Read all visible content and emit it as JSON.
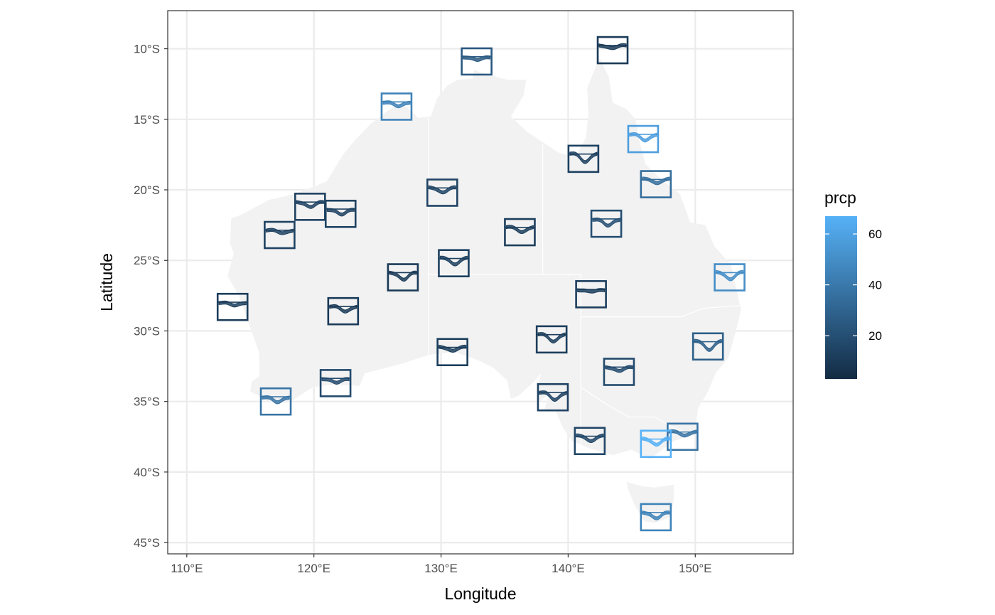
{
  "chart_data": {
    "type": "map-glyph",
    "xlabel": "Longitude",
    "ylabel": "Latitude",
    "xlim": [
      108.5,
      157.7
    ],
    "ylim": [
      -45.8,
      -7.3
    ],
    "x_ticks": [
      110,
      120,
      130,
      140,
      150
    ],
    "x_tick_labels": [
      "110°E",
      "120°E",
      "130°E",
      "140°E",
      "150°E"
    ],
    "y_ticks": [
      -10,
      -15,
      -20,
      -25,
      -30,
      -35,
      -40,
      -45
    ],
    "y_tick_labels": [
      "10°S",
      "15°S",
      "20°S",
      "25°S",
      "30°S",
      "35°S",
      "40°S",
      "45°S"
    ],
    "grid": true,
    "legend": {
      "title": "prcp",
      "position": "right",
      "min": 3,
      "max": 67,
      "ticks": [
        20,
        40,
        60
      ],
      "tick_labels": [
        "20",
        "40",
        "60"
      ],
      "color_low": "#132B43",
      "color_high": "#56B1F7"
    },
    "stations": [
      {
        "lon": 143.5,
        "lat": -10.1,
        "prcp": 10
      },
      {
        "lon": 132.8,
        "lat": -10.9,
        "prcp": 25
      },
      {
        "lon": 126.5,
        "lat": -14.1,
        "prcp": 45
      },
      {
        "lon": 145.9,
        "lat": -16.4,
        "prcp": 58
      },
      {
        "lon": 141.2,
        "lat": -17.8,
        "prcp": 13
      },
      {
        "lon": 146.9,
        "lat": -19.6,
        "prcp": 35
      },
      {
        "lon": 130.1,
        "lat": -20.2,
        "prcp": 15
      },
      {
        "lon": 119.7,
        "lat": -21.2,
        "prcp": 14
      },
      {
        "lon": 122.1,
        "lat": -21.7,
        "prcp": 14
      },
      {
        "lon": 143.0,
        "lat": -22.4,
        "prcp": 20
      },
      {
        "lon": 117.3,
        "lat": -23.2,
        "prcp": 14
      },
      {
        "lon": 136.2,
        "lat": -23.0,
        "prcp": 12
      },
      {
        "lon": 131.0,
        "lat": -25.2,
        "prcp": 13
      },
      {
        "lon": 152.7,
        "lat": -26.2,
        "prcp": 50
      },
      {
        "lon": 127.0,
        "lat": -26.2,
        "prcp": 10
      },
      {
        "lon": 141.8,
        "lat": -27.4,
        "prcp": 12
      },
      {
        "lon": 113.6,
        "lat": -28.3,
        "prcp": 12
      },
      {
        "lon": 122.3,
        "lat": -28.6,
        "prcp": 10
      },
      {
        "lon": 138.7,
        "lat": -30.6,
        "prcp": 12
      },
      {
        "lon": 151.0,
        "lat": -31.1,
        "prcp": 28
      },
      {
        "lon": 130.9,
        "lat": -31.5,
        "prcp": 12
      },
      {
        "lon": 144.0,
        "lat": -32.9,
        "prcp": 18
      },
      {
        "lon": 121.7,
        "lat": -33.7,
        "prcp": 18
      },
      {
        "lon": 117.0,
        "lat": -35.0,
        "prcp": 38
      },
      {
        "lon": 138.8,
        "lat": -34.7,
        "prcp": 14
      },
      {
        "lon": 149.0,
        "lat": -37.5,
        "prcp": 38
      },
      {
        "lon": 141.7,
        "lat": -37.8,
        "prcp": 16
      },
      {
        "lon": 146.9,
        "lat": -38.0,
        "prcp": 67
      },
      {
        "lon": 146.9,
        "lat": -43.2,
        "prcp": 45
      }
    ]
  }
}
